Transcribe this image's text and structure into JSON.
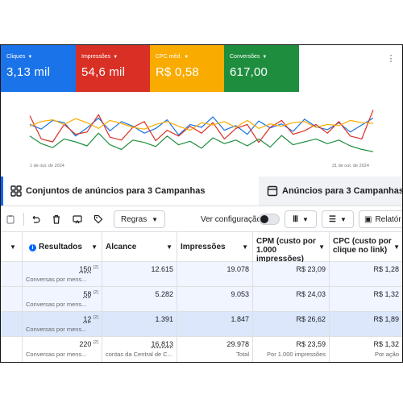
{
  "google_ads": {
    "metrics": {
      "clicks": {
        "label": "Cliques",
        "value": "3,13 mil",
        "color": "#1a73e8"
      },
      "impressions": {
        "label": "Impressões",
        "value": "54,6 mil",
        "color": "#d93025"
      },
      "cpc": {
        "label": "CPC méd.",
        "value": "R$ 0,58",
        "color": "#f9ab00"
      },
      "conversions": {
        "label": "Conversões",
        "value": "617,00",
        "color": "#1e8e3e"
      }
    },
    "menu_icon": "more-vert-icon",
    "date_start": "1 de out. de 2024",
    "date_end": "31 de out. de 2024"
  },
  "chart_data": {
    "type": "line",
    "x_labels": [
      "1 de out. de 2024",
      "31 de out. de 2024"
    ],
    "grid": false,
    "series": [
      {
        "key": "clicks",
        "color": "#1a73e8",
        "values": [
          55,
          47,
          62,
          58,
          35,
          49,
          66,
          44,
          60,
          52,
          40,
          48,
          63,
          37,
          55,
          50,
          68,
          45,
          53,
          38,
          61,
          49,
          56,
          43,
          64,
          51,
          46,
          58,
          42,
          54,
          66
        ]
      },
      {
        "key": "impressions",
        "color": "#d93025",
        "values": [
          70,
          30,
          25,
          55,
          38,
          42,
          72,
          33,
          28,
          50,
          60,
          27,
          45,
          35,
          52,
          40,
          58,
          30,
          48,
          55,
          24,
          50,
          62,
          38,
          44,
          55,
          40,
          60,
          35,
          30,
          80
        ]
      },
      {
        "key": "cpc",
        "color": "#f9ab00",
        "values": [
          52,
          60,
          63,
          55,
          65,
          58,
          48,
          62,
          57,
          50,
          47,
          55,
          60,
          52,
          45,
          58,
          54,
          60,
          50,
          62,
          48,
          56,
          52,
          58,
          60,
          50,
          55,
          53,
          62,
          58,
          57
        ]
      },
      {
        "key": "conversions",
        "color": "#1e8e3e",
        "values": [
          35,
          22,
          15,
          30,
          25,
          18,
          40,
          20,
          12,
          28,
          24,
          17,
          35,
          20,
          26,
          14,
          32,
          22,
          28,
          18,
          30,
          16,
          36,
          20,
          25,
          30,
          22,
          28,
          18,
          12,
          8
        ]
      }
    ]
  },
  "meta_ads": {
    "tabs": {
      "adsets": "Conjuntos de anúncios para 3 Campanhas",
      "ads": "Anúncios para 3 Campanhas"
    },
    "toolbar": {
      "rules_label": "Regras",
      "config_label": "Ver configuração",
      "reports_label": "Relatór"
    },
    "columns": {
      "results": "Resultados",
      "reach": "Alcance",
      "impressions": "Impressões",
      "cpm": "CPM (custo por 1.000 impressões)",
      "cpc": "CPC (custo por clique no link)"
    },
    "rows": [
      {
        "results": "150",
        "results_sub": "Conversas por mens...",
        "reach": "12.615",
        "impressions": "19.078",
        "cpm": "R$ 23,09",
        "cpc": "R$ 1,28"
      },
      {
        "results": "58",
        "results_sub": "Conversas por mens...",
        "reach": "5.282",
        "impressions": "9.053",
        "cpm": "R$ 24,03",
        "cpc": "R$ 1,32"
      },
      {
        "results": "12",
        "results_sub": "Conversas por mens...",
        "reach": "1.391",
        "impressions": "1.847",
        "cpm": "R$ 26,62",
        "cpc": "R$ 1,89"
      }
    ],
    "footnote": "[2]",
    "total": {
      "results": "220",
      "results_sub": "Conversas por mens...",
      "reach": "16.813",
      "reach_sub": "contas da Central de C...",
      "impressions": "29.978",
      "impressions_sub": "Total",
      "cpm": "R$ 23,59",
      "cpm_sub": "Por 1.000 impressões",
      "cpc": "R$ 1,32",
      "cpc_sub": "Por ação"
    }
  }
}
